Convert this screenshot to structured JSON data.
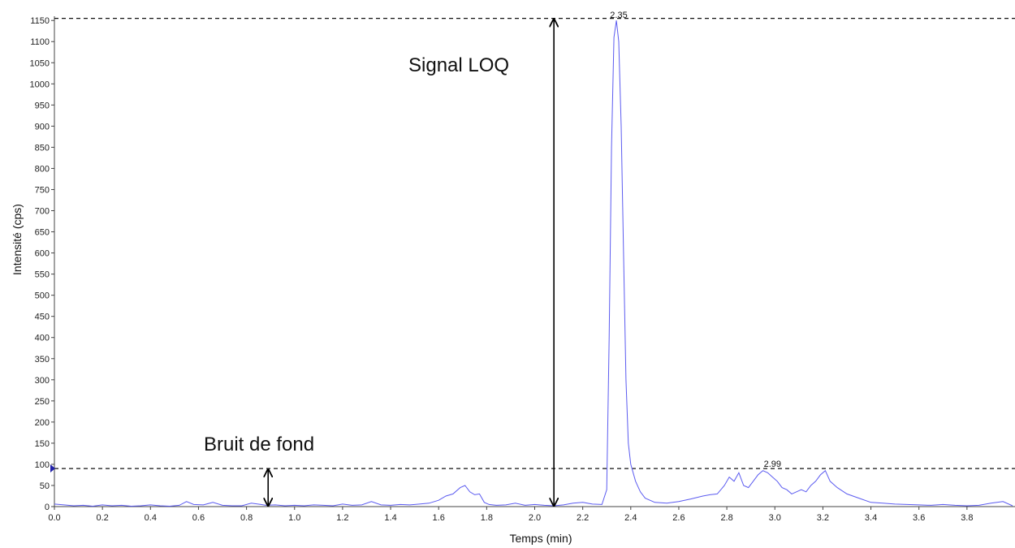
{
  "chart_data": {
    "type": "line",
    "xlabel": "Temps (min)",
    "ylabel": "Intensité (cps)",
    "xlim": [
      0.0,
      4.0
    ],
    "ylim": [
      0,
      1160
    ],
    "x_ticks": [
      "0.0",
      "0.2",
      "0.4",
      "0.6",
      "0.8",
      "1.0",
      "1.2",
      "1.4",
      "1.6",
      "1.8",
      "2.0",
      "2.2",
      "2.4",
      "2.6",
      "2.8",
      "3.0",
      "3.2",
      "3.4",
      "3.6",
      "3.8"
    ],
    "y_ticks": [
      "0",
      "50",
      "100",
      "150",
      "200",
      "250",
      "300",
      "350",
      "400",
      "450",
      "500",
      "550",
      "600",
      "650",
      "700",
      "750",
      "800",
      "850",
      "900",
      "950",
      "1000",
      "1050",
      "1100",
      "1150"
    ],
    "series_color": "#5b5bf0",
    "series": [
      {
        "x": [
          0.0,
          0.04,
          0.08,
          0.12,
          0.16,
          0.2,
          0.24,
          0.28,
          0.32,
          0.36,
          0.4,
          0.44,
          0.48,
          0.52,
          0.55,
          0.58,
          0.62,
          0.66,
          0.7,
          0.74,
          0.78,
          0.82,
          0.86,
          0.88,
          0.92,
          0.96,
          1.0,
          1.04,
          1.08,
          1.12,
          1.16,
          1.2,
          1.24,
          1.28,
          1.32,
          1.36,
          1.4,
          1.44,
          1.48,
          1.52,
          1.56,
          1.6,
          1.63,
          1.66,
          1.69,
          1.71,
          1.73,
          1.75,
          1.77,
          1.79,
          1.81,
          1.84,
          1.88,
          1.92,
          1.96,
          2.0,
          2.04,
          2.08,
          2.12,
          2.16,
          2.2,
          2.24,
          2.28,
          2.3,
          2.31,
          2.32,
          2.33,
          2.34,
          2.35,
          2.36,
          2.37,
          2.38,
          2.39,
          2.4,
          2.42,
          2.44,
          2.46,
          2.5,
          2.55,
          2.6,
          2.65,
          2.7,
          2.73,
          2.76,
          2.79,
          2.81,
          2.83,
          2.85,
          2.87,
          2.89,
          2.91,
          2.93,
          2.95,
          2.97,
          2.99,
          3.01,
          3.03,
          3.05,
          3.07,
          3.09,
          3.11,
          3.13,
          3.15,
          3.17,
          3.19,
          3.21,
          3.23,
          3.26,
          3.3,
          3.35,
          3.4,
          3.45,
          3.5,
          3.55,
          3.6,
          3.65,
          3.7,
          3.75,
          3.8,
          3.85,
          3.9,
          3.95,
          3.99
        ],
        "y": [
          6,
          4,
          2,
          3,
          1,
          4,
          2,
          3,
          1,
          2,
          4,
          2,
          1,
          3,
          12,
          5,
          4,
          10,
          3,
          2,
          2,
          8,
          5,
          3,
          4,
          2,
          3,
          2,
          4,
          3,
          2,
          6,
          3,
          4,
          12,
          4,
          3,
          5,
          4,
          6,
          8,
          15,
          25,
          30,
          45,
          50,
          35,
          28,
          30,
          10,
          5,
          3,
          4,
          8,
          3,
          5,
          3,
          2,
          4,
          8,
          10,
          6,
          5,
          40,
          400,
          850,
          1110,
          1150,
          1100,
          900,
          600,
          300,
          150,
          100,
          60,
          35,
          20,
          10,
          8,
          12,
          18,
          25,
          28,
          30,
          50,
          70,
          60,
          80,
          50,
          45,
          60,
          75,
          85,
          80,
          70,
          60,
          45,
          40,
          30,
          35,
          40,
          35,
          50,
          60,
          75,
          85,
          60,
          45,
          30,
          20,
          10,
          8,
          6,
          5,
          4,
          3,
          5,
          3,
          2,
          3,
          8,
          12,
          2
        ]
      }
    ],
    "peak_labels": [
      {
        "x": 2.35,
        "y": 1150,
        "text": "2.35"
      },
      {
        "x": 2.99,
        "y": 88,
        "text": "2.99"
      }
    ],
    "reference_lines": [
      {
        "y": 1155,
        "style": "dashed"
      },
      {
        "y": 90,
        "style": "dashed"
      }
    ],
    "annotations": {
      "signal_text": "Signal LOQ",
      "noise_text": "Bruit de fond"
    },
    "arrows": [
      {
        "x": 2.08,
        "y1": 0,
        "y2": 1155
      },
      {
        "x": 0.89,
        "y1": 0,
        "y2": 90
      }
    ]
  }
}
